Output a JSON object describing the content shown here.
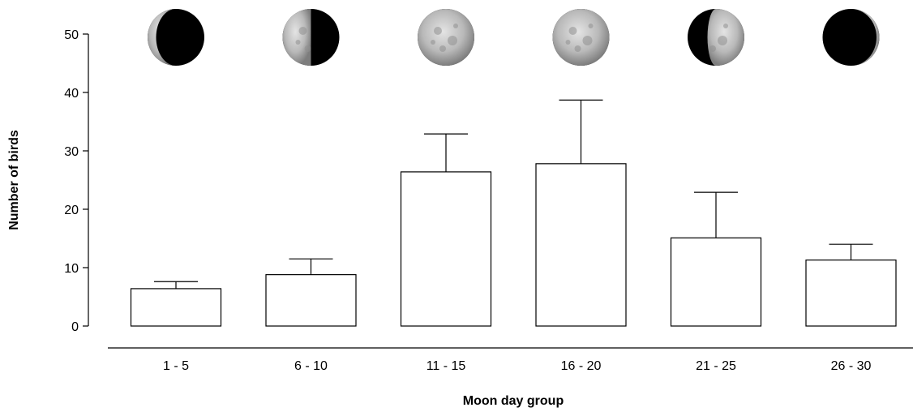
{
  "chart_data": {
    "type": "bar",
    "title": "",
    "xlabel": "Moon day group",
    "ylabel": "Number of birds",
    "categories": [
      "1 - 5",
      "6 - 10",
      "11 - 15",
      "16 - 20",
      "21 - 25",
      "26 - 30"
    ],
    "values": [
      6.4,
      8.8,
      26.4,
      27.8,
      15.1,
      11.3
    ],
    "error_upper": [
      7.6,
      11.5,
      32.9,
      38.7,
      22.9,
      14.0
    ],
    "yticks": [
      0,
      10,
      20,
      30,
      40,
      50
    ],
    "ylim": [
      0,
      50
    ],
    "grid": false,
    "bar_fill": "#ffffff",
    "bar_stroke": "#000000",
    "moon_phases": [
      {
        "category": "1 - 5",
        "phase": "waxing-crescent",
        "lit_fraction": 0.15,
        "lit_side": "left"
      },
      {
        "category": "6 - 10",
        "phase": "first-quarter",
        "lit_fraction": 0.5,
        "lit_side": "left"
      },
      {
        "category": "11 - 15",
        "phase": "full-moon",
        "lit_fraction": 1.0,
        "lit_side": "both"
      },
      {
        "category": "16 - 20",
        "phase": "full-moon",
        "lit_fraction": 1.0,
        "lit_side": "both"
      },
      {
        "category": "21 - 25",
        "phase": "waning-gibbous",
        "lit_fraction": 0.65,
        "lit_side": "right"
      },
      {
        "category": "26 - 30",
        "phase": "new-moon",
        "lit_fraction": 0.05,
        "lit_side": "right"
      }
    ]
  }
}
